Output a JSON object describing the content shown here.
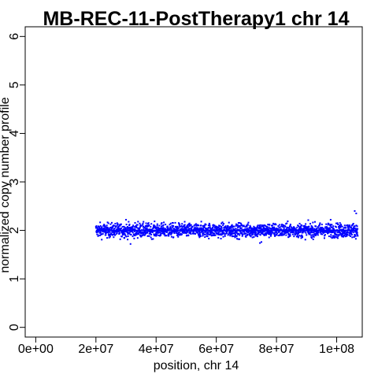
{
  "chart_data": {
    "type": "scatter",
    "title": "MB-REC-11-PostTherapy1 chr 14",
    "xlabel": "position, chr 14",
    "ylabel": "normalized copy number profile",
    "xlim": [
      -3500000,
      108500000
    ],
    "ylim": [
      -0.2,
      6.2
    ],
    "x_ticks": [
      0,
      20000000,
      40000000,
      60000000,
      80000000,
      100000000
    ],
    "x_tick_labels": [
      "0e+00",
      "2e+07",
      "4e+07",
      "6e+07",
      "8e+07",
      "1e+08"
    ],
    "y_ticks": [
      0,
      1,
      2,
      3,
      4,
      5,
      6
    ],
    "y_tick_labels": [
      "0",
      "1",
      "2",
      "3",
      "4",
      "5",
      "6"
    ],
    "grid": false,
    "point_color": "#0000ff",
    "segment_color": "#0000ff",
    "series": [
      {
        "x_range": [
          20000000,
          107000000
        ],
        "center": 2.0,
        "spread": 0.08,
        "n_points": 1800,
        "outliers": [
          {
            "x": 31500000,
            "y": 1.72
          },
          {
            "x": 30000000,
            "y": 2.22
          },
          {
            "x": 34000000,
            "y": 2.18
          },
          {
            "x": 74500000,
            "y": 1.74
          },
          {
            "x": 75000000,
            "y": 1.76
          },
          {
            "x": 106000000,
            "y": 2.4
          },
          {
            "x": 106500000,
            "y": 2.35
          },
          {
            "x": 98000000,
            "y": 2.22
          }
        ]
      }
    ],
    "segments": [
      {
        "x0": 20000000,
        "x1": 107000000,
        "y": 2.0
      }
    ]
  }
}
